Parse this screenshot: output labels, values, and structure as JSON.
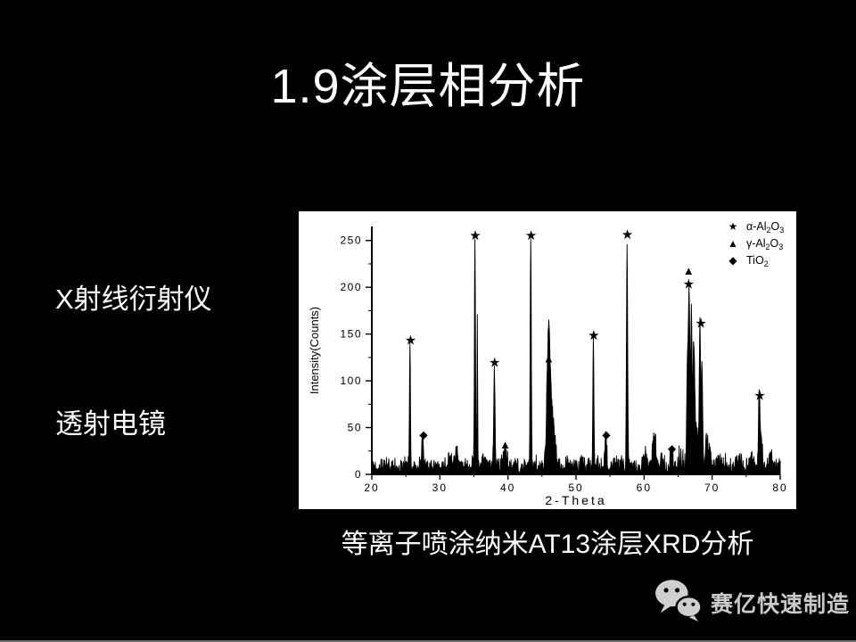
{
  "slide": {
    "title": "1.9涂层相分析",
    "left_labels": [
      "X射线衍射仪",
      "透射电镜"
    ],
    "caption": "等离子喷涂纳米AT13涂层XRD分析",
    "footer": {
      "brand": "赛亿快速制造",
      "icon": "wechat-icon"
    }
  },
  "colors": {
    "slide_bg": "#000000",
    "text": "#ffffff",
    "panel_bg": "#ffffff",
    "trace": "#000000",
    "footer_text": "#c9c9c9",
    "divider": "#6e6e6e"
  },
  "chart_data": {
    "type": "line",
    "title": "",
    "xlabel": "2-Theta",
    "ylabel": "Intensity(Counts)",
    "xlim": [
      20,
      80
    ],
    "ylim": [
      0,
      265
    ],
    "x_ticks": [
      20,
      30,
      40,
      50,
      60,
      70,
      80
    ],
    "y_ticks": [
      0,
      50,
      100,
      150,
      200,
      250
    ],
    "x_minor_ticks": [
      25,
      35,
      45,
      55,
      65,
      75
    ],
    "y_minor_ticks": [
      25,
      75,
      125,
      175,
      225
    ],
    "grid": false,
    "legend_position": "top-right",
    "legend": [
      {
        "name": "alpha-Al2O3",
        "symbol": "star",
        "parts": [
          {
            "t": "α-Al"
          },
          {
            "t": "2",
            "sub": true
          },
          {
            "t": "O"
          },
          {
            "t": "3",
            "sub": true
          }
        ]
      },
      {
        "name": "gamma-Al2O3",
        "symbol": "triangle",
        "parts": [
          {
            "t": "γ-Al"
          },
          {
            "t": "2",
            "sub": true
          },
          {
            "t": "O"
          },
          {
            "t": "3",
            "sub": true
          }
        ]
      },
      {
        "name": "TiO2",
        "symbol": "diamond",
        "parts": [
          {
            "t": "TiO"
          },
          {
            "t": "2",
            "sub": true
          }
        ]
      }
    ],
    "peaks": [
      {
        "two_theta": 25.6,
        "intensity": 134,
        "width": 0.1
      },
      {
        "two_theta": 27.45,
        "intensity": 32,
        "width": 0.14
      },
      {
        "two_theta": 31.4,
        "intensity": 12,
        "width": 0.4
      },
      {
        "two_theta": 32.5,
        "intensity": 13,
        "width": 0.35
      },
      {
        "two_theta": 35.15,
        "intensity": 248,
        "width": 0.1
      },
      {
        "two_theta": 35.5,
        "intensity": 155,
        "width": 0.07
      },
      {
        "two_theta": 36.3,
        "intensity": 12,
        "width": 0.3
      },
      {
        "two_theta": 38.0,
        "intensity": 105,
        "width": 0.13
      },
      {
        "two_theta": 39.5,
        "intensity": 18,
        "width": 0.25
      },
      {
        "two_theta": 43.35,
        "intensity": 248,
        "width": 0.11
      },
      {
        "two_theta": 45.95,
        "intensity": 100,
        "width": 0.3
      },
      {
        "two_theta": 46.2,
        "intensity": 55,
        "width": 0.5
      },
      {
        "two_theta": 46.7,
        "intensity": 25,
        "width": 0.5
      },
      {
        "two_theta": 48.8,
        "intensity": 8,
        "width": 0.4
      },
      {
        "two_theta": 50.9,
        "intensity": 10,
        "width": 0.3
      },
      {
        "two_theta": 52.55,
        "intensity": 138,
        "width": 0.11
      },
      {
        "two_theta": 54.35,
        "intensity": 30,
        "width": 0.2
      },
      {
        "two_theta": 55.6,
        "intensity": 8,
        "width": 0.4
      },
      {
        "two_theta": 57.5,
        "intensity": 244,
        "width": 0.12
      },
      {
        "two_theta": 60.2,
        "intensity": 18,
        "width": 0.3
      },
      {
        "two_theta": 61.5,
        "intensity": 30,
        "width": 0.35
      },
      {
        "two_theta": 62.6,
        "intensity": 10,
        "width": 0.4
      },
      {
        "two_theta": 64.0,
        "intensity": 16,
        "width": 0.25
      },
      {
        "two_theta": 65.3,
        "intensity": 12,
        "width": 0.3
      },
      {
        "two_theta": 66.35,
        "intensity": 100,
        "width": 0.12
      },
      {
        "two_theta": 66.6,
        "intensity": 188,
        "width": 0.17
      },
      {
        "two_theta": 66.95,
        "intensity": 160,
        "width": 0.14
      },
      {
        "two_theta": 67.3,
        "intensity": 115,
        "width": 0.17
      },
      {
        "two_theta": 67.65,
        "intensity": 40,
        "width": 0.45
      },
      {
        "two_theta": 68.2,
        "intensity": 148,
        "width": 0.12
      },
      {
        "two_theta": 68.5,
        "intensity": 110,
        "width": 0.15
      },
      {
        "two_theta": 69.2,
        "intensity": 30,
        "width": 0.3
      },
      {
        "two_theta": 69.7,
        "intensity": 12,
        "width": 0.35
      },
      {
        "two_theta": 71.0,
        "intensity": 8,
        "width": 0.4
      },
      {
        "two_theta": 74.0,
        "intensity": 8,
        "width": 0.4
      },
      {
        "two_theta": 75.7,
        "intensity": 10,
        "width": 0.35
      },
      {
        "two_theta": 76.9,
        "intensity": 72,
        "width": 0.13
      },
      {
        "two_theta": 77.15,
        "intensity": 40,
        "width": 0.25
      },
      {
        "two_theta": 78.6,
        "intensity": 10,
        "width": 0.4
      }
    ],
    "markers": [
      {
        "symbol": "star",
        "x": 25.7,
        "y": 143
      },
      {
        "symbol": "diamond",
        "x": 27.6,
        "y": 43
      },
      {
        "symbol": "star",
        "x": 35.2,
        "y": 255
      },
      {
        "symbol": "star",
        "x": 38.05,
        "y": 119
      },
      {
        "symbol": "triangle",
        "x": 39.6,
        "y": 32
      },
      {
        "symbol": "star",
        "x": 43.4,
        "y": 255
      },
      {
        "symbol": "triangle",
        "x": 46.0,
        "y": 124
      },
      {
        "symbol": "star",
        "x": 52.6,
        "y": 148
      },
      {
        "symbol": "diamond",
        "x": 54.45,
        "y": 43
      },
      {
        "symbol": "star",
        "x": 57.55,
        "y": 256
      },
      {
        "symbol": "diamond",
        "x": 64.1,
        "y": 28
      },
      {
        "symbol": "triangle",
        "x": 66.55,
        "y": 218
      },
      {
        "symbol": "star",
        "x": 66.55,
        "y": 203
      },
      {
        "symbol": "star",
        "x": 68.35,
        "y": 161
      },
      {
        "symbol": "star",
        "x": 77.0,
        "y": 84
      }
    ],
    "noise": {
      "seed": 42,
      "base": 2,
      "amp": 16,
      "step": 0.05,
      "cap": 252
    }
  }
}
